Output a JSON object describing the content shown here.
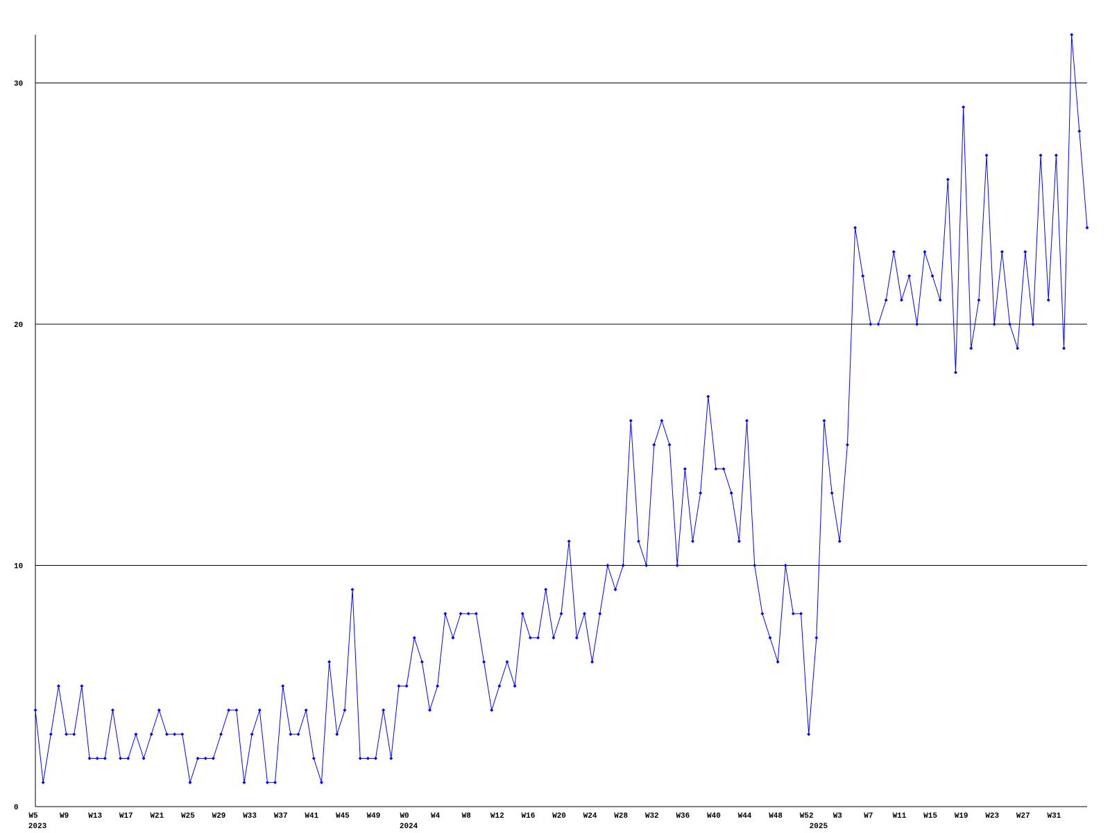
{
  "chart_data": {
    "type": "line",
    "categories": [
      "W5",
      null,
      null,
      null,
      "W9",
      null,
      null,
      null,
      "W13",
      null,
      null,
      null,
      "W17",
      null,
      null,
      null,
      "W21",
      null,
      null,
      null,
      "W25",
      null,
      null,
      null,
      "W29",
      null,
      null,
      null,
      "W33",
      null,
      null,
      null,
      "W37",
      null,
      null,
      null,
      "W41",
      null,
      null,
      null,
      "W45",
      null,
      null,
      null,
      "W49",
      null,
      null,
      null,
      "W0",
      null,
      null,
      null,
      "W4",
      null,
      null,
      null,
      "W8",
      null,
      null,
      null,
      "W12",
      null,
      null,
      null,
      "W16",
      null,
      null,
      null,
      "W20",
      null,
      null,
      null,
      "W24",
      null,
      null,
      null,
      "W28",
      null,
      null,
      null,
      "W32",
      null,
      null,
      null,
      "W36",
      null,
      null,
      null,
      "W40",
      null,
      null,
      null,
      "W44",
      null,
      null,
      null,
      "W48",
      null,
      null,
      null,
      "W52",
      null,
      null,
      null,
      "W3",
      null,
      null,
      null,
      "W7",
      null,
      null,
      null,
      "W11",
      null,
      null,
      null,
      "W15",
      null,
      null,
      null,
      "W19",
      null,
      null,
      null,
      "W23",
      null,
      null,
      null,
      "W27",
      null,
      null,
      null,
      "W31",
      null,
      null,
      null,
      null
    ],
    "years": [
      "2023",
      null,
      null,
      null,
      null,
      null,
      null,
      null,
      null,
      null,
      null,
      null,
      null,
      null,
      null,
      null,
      null,
      null,
      null,
      null,
      null,
      null,
      null,
      null,
      null,
      null,
      null,
      null,
      null,
      null,
      null,
      null,
      null,
      null,
      null,
      null,
      null,
      null,
      null,
      null,
      null,
      null,
      null,
      null,
      null,
      null,
      null,
      null,
      "2024",
      null,
      null,
      null,
      null,
      null,
      null,
      null,
      null,
      null,
      null,
      null,
      null,
      null,
      null,
      null,
      null,
      null,
      null,
      null,
      null,
      null,
      null,
      null,
      null,
      null,
      null,
      null,
      null,
      null,
      null,
      null,
      null,
      null,
      null,
      null,
      null,
      null,
      null,
      null,
      null,
      null,
      null,
      null,
      null,
      null,
      null,
      null,
      null,
      null,
      null,
      null,
      null,
      "2025",
      null,
      null,
      null,
      null,
      null,
      null,
      null,
      null,
      null,
      null,
      null,
      null,
      null,
      null,
      null,
      null,
      null,
      null,
      null,
      null,
      null,
      null,
      null,
      null,
      null,
      null,
      null,
      null,
      null,
      null,
      null,
      null,
      null,
      null,
      null
    ],
    "series": [
      {
        "color": "#0000ff",
        "values": [
          4,
          1,
          3,
          5,
          3,
          3,
          5,
          2,
          2,
          2,
          4,
          2,
          2,
          3,
          2,
          3,
          4,
          3,
          3,
          3,
          1,
          2,
          2,
          2,
          3,
          4,
          4,
          1,
          3,
          4,
          1,
          1,
          5,
          3,
          3,
          4,
          2,
          1,
          6,
          3,
          4,
          9,
          2,
          2,
          2,
          4,
          2,
          5,
          5,
          7,
          6,
          4,
          5,
          8,
          7,
          8,
          8,
          8,
          6,
          4,
          5,
          6,
          5,
          8,
          7,
          7,
          9,
          7,
          8,
          11,
          7,
          8,
          6,
          8,
          10,
          9,
          10,
          16,
          11,
          10,
          15,
          16,
          15,
          10,
          14,
          11,
          13,
          17,
          14,
          14,
          13,
          11,
          16,
          10,
          8,
          7,
          6,
          10,
          8,
          8,
          3,
          7,
          16,
          13,
          11,
          15,
          24,
          22,
          20,
          20,
          21,
          23,
          21,
          22,
          20,
          23,
          22,
          21,
          26,
          18,
          29,
          19,
          21,
          27,
          20,
          23,
          20,
          19,
          23,
          20,
          27,
          21,
          27,
          19,
          32,
          28,
          24
        ]
      }
    ],
    "ylim": [
      0,
      32
    ],
    "yticks": [
      0,
      10,
      20,
      30
    ],
    "grid": true
  }
}
